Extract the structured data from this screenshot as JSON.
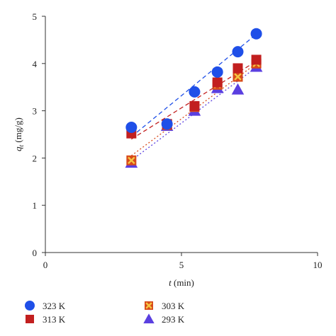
{
  "chart_data": {
    "type": "scatter",
    "xlabel_italic": "t",
    "xlabel_rest": " (min)",
    "ylabel_italic": "q",
    "ylabel_sub": "t",
    "ylabel_rest": " (mg/g)",
    "xlim": [
      0,
      10
    ],
    "ylim": [
      0,
      5
    ],
    "xticks": [
      0,
      5,
      10
    ],
    "yticks": [
      0,
      1,
      2,
      3,
      4,
      5
    ],
    "grid": false,
    "legend_position": "bottom",
    "x": [
      3.16,
      4.47,
      5.48,
      6.32,
      7.07,
      7.75
    ],
    "series": [
      {
        "name": "323 K",
        "values": [
          2.65,
          2.72,
          3.4,
          3.82,
          4.25,
          4.63
        ],
        "color": "#1f4fe8",
        "marker": "circle",
        "fit": [
          2.45,
          4.62
        ],
        "dash": "6,4"
      },
      {
        "name": "313 K",
        "values": [
          2.52,
          2.72,
          3.1,
          3.6,
          3.9,
          4.08
        ],
        "color": "#c21f1f",
        "marker": "square",
        "fit": [
          2.4,
          4.05
        ],
        "dash": "6,4"
      },
      {
        "name": "303 K",
        "values": [
          1.95,
          2.7,
          3.08,
          3.55,
          3.72,
          4.0
        ],
        "color": "#d84a1a",
        "marker": "square-x",
        "fit": [
          2.05,
          4.0
        ],
        "dash": "2,3"
      },
      {
        "name": "293 K",
        "values": [
          1.9,
          2.68,
          3.0,
          3.48,
          3.45,
          3.93
        ],
        "color": "#5a3fe0",
        "marker": "triangle",
        "fit": [
          1.95,
          3.92
        ],
        "dash": "2,3"
      }
    ]
  }
}
